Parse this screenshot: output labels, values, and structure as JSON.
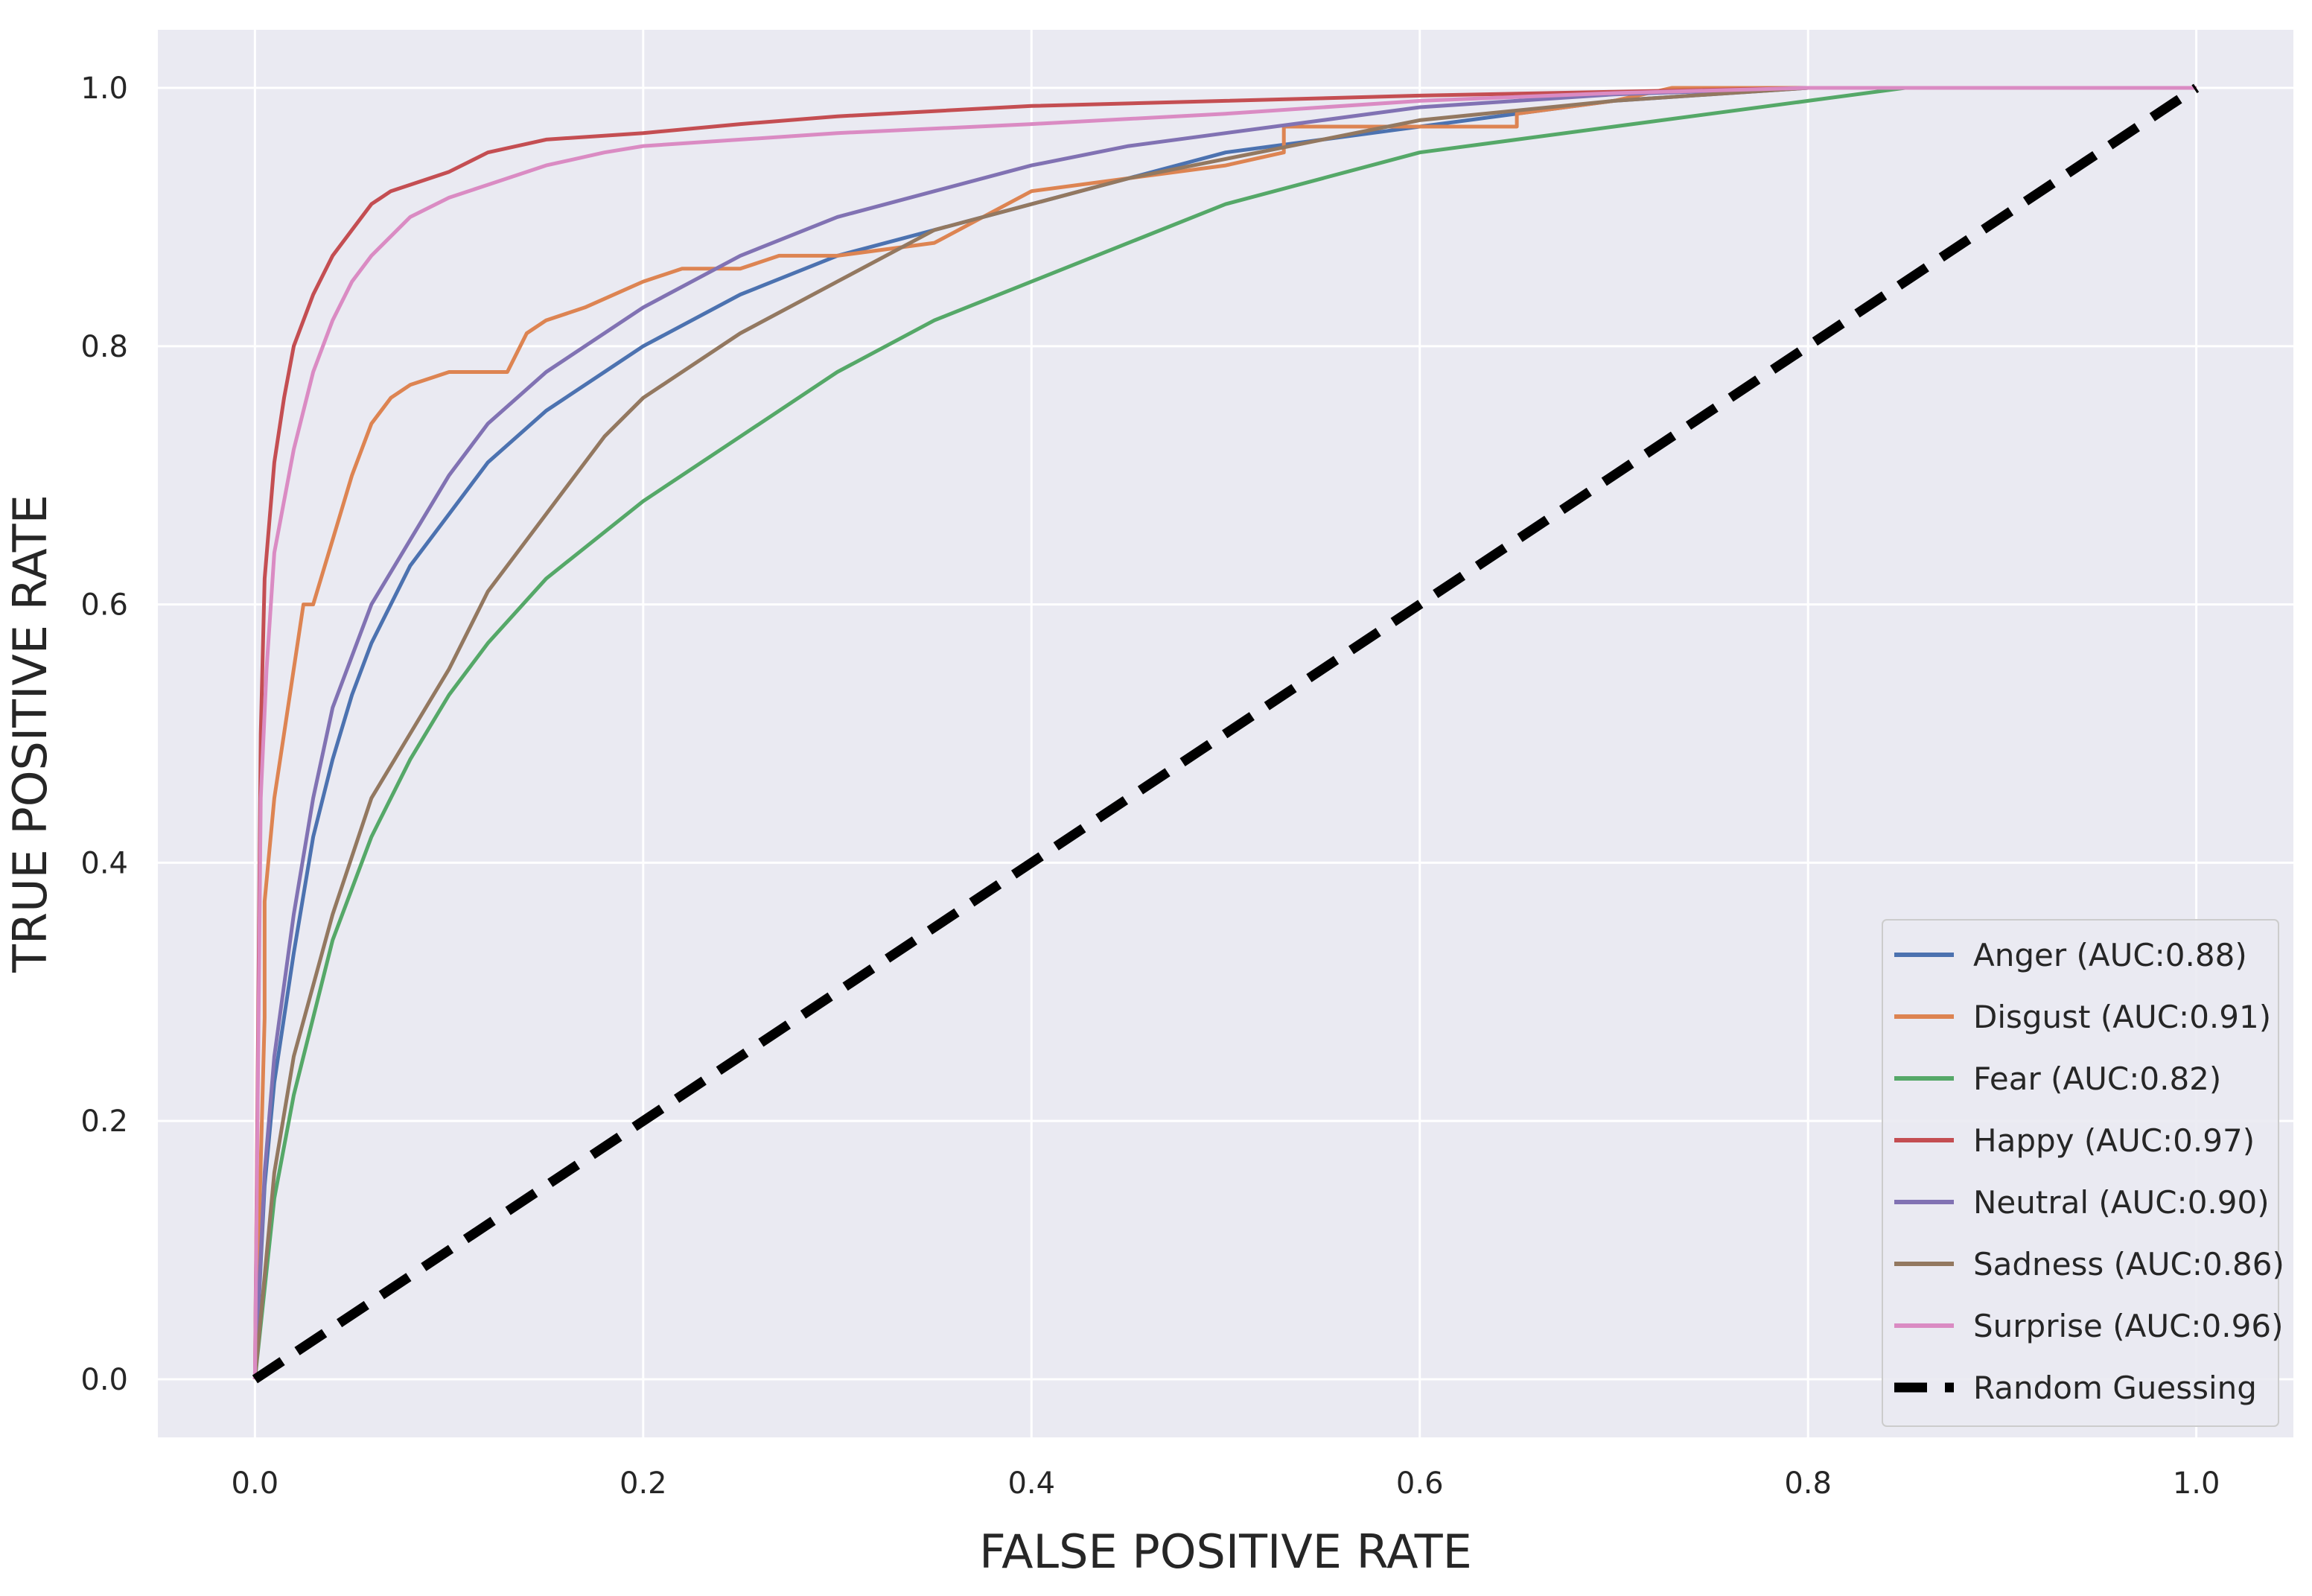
{
  "chart_data": {
    "type": "line",
    "title": "",
    "xlabel": "FALSE POSITIVE RATE",
    "ylabel": "TRUE POSITIVE RATE",
    "xlim": [
      -0.05,
      1.05
    ],
    "ylim": [
      -0.045,
      1.045
    ],
    "xticks": [
      0.0,
      0.2,
      0.4,
      0.6,
      0.8,
      1.0
    ],
    "xtick_labels": [
      "0.0",
      "0.2",
      "0.4",
      "0.6",
      "0.8",
      "1.0"
    ],
    "yticks": [
      0.0,
      0.2,
      0.4,
      0.6,
      0.8,
      1.0
    ],
    "ytick_labels": [
      "0.0",
      "0.2",
      "0.4",
      "0.6",
      "0.8",
      "1.0"
    ],
    "grid": true,
    "legend_position": "lower-right",
    "colors": {
      "plot_background": "#eaeaf2",
      "grid": "#ffffff"
    },
    "series": [
      {
        "name": "Anger (AUC:0.88)",
        "color": "#4c72b0",
        "dash": false,
        "x": [
          0.0,
          0.005,
          0.01,
          0.02,
          0.03,
          0.04,
          0.05,
          0.06,
          0.08,
          0.1,
          0.12,
          0.15,
          0.18,
          0.2,
          0.25,
          0.3,
          0.35,
          0.4,
          0.45,
          0.5,
          0.55,
          0.6,
          0.7,
          0.8,
          0.9,
          1.0
        ],
        "y": [
          0.0,
          0.15,
          0.23,
          0.33,
          0.42,
          0.48,
          0.53,
          0.57,
          0.63,
          0.67,
          0.71,
          0.75,
          0.78,
          0.8,
          0.84,
          0.87,
          0.89,
          0.91,
          0.93,
          0.95,
          0.96,
          0.97,
          0.99,
          1.0,
          1.0,
          1.0
        ]
      },
      {
        "name": "Disgust (AUC:0.91)",
        "color": "#dd8452",
        "dash": false,
        "x": [
          0.0,
          0.005,
          0.005,
          0.01,
          0.015,
          0.02,
          0.025,
          0.03,
          0.04,
          0.05,
          0.06,
          0.07,
          0.08,
          0.1,
          0.13,
          0.14,
          0.15,
          0.17,
          0.2,
          0.22,
          0.25,
          0.27,
          0.3,
          0.35,
          0.4,
          0.45,
          0.5,
          0.53,
          0.53,
          0.6,
          0.65,
          0.65,
          0.7,
          0.73,
          0.8,
          1.0
        ],
        "y": [
          0.0,
          0.28,
          0.37,
          0.45,
          0.5,
          0.55,
          0.6,
          0.6,
          0.65,
          0.7,
          0.74,
          0.76,
          0.77,
          0.78,
          0.78,
          0.81,
          0.82,
          0.83,
          0.85,
          0.86,
          0.86,
          0.87,
          0.87,
          0.88,
          0.92,
          0.93,
          0.94,
          0.95,
          0.97,
          0.97,
          0.97,
          0.98,
          0.99,
          1.0,
          1.0,
          1.0
        ]
      },
      {
        "name": "Fear (AUC:0.82)",
        "color": "#55a868",
        "dash": false,
        "x": [
          0.0,
          0.01,
          0.02,
          0.04,
          0.06,
          0.08,
          0.1,
          0.12,
          0.15,
          0.2,
          0.25,
          0.3,
          0.35,
          0.4,
          0.45,
          0.5,
          0.55,
          0.6,
          0.65,
          0.7,
          0.75,
          0.8,
          0.85,
          0.9,
          1.0
        ],
        "y": [
          0.0,
          0.14,
          0.22,
          0.34,
          0.42,
          0.48,
          0.53,
          0.57,
          0.62,
          0.68,
          0.73,
          0.78,
          0.82,
          0.85,
          0.88,
          0.91,
          0.93,
          0.95,
          0.96,
          0.97,
          0.98,
          0.99,
          1.0,
          1.0,
          1.0
        ]
      },
      {
        "name": "Happy (AUC:0.97)",
        "color": "#c44e52",
        "dash": false,
        "x": [
          0.0,
          0.003,
          0.005,
          0.01,
          0.015,
          0.02,
          0.03,
          0.04,
          0.05,
          0.06,
          0.07,
          0.08,
          0.1,
          0.12,
          0.15,
          0.2,
          0.25,
          0.3,
          0.35,
          0.4,
          0.5,
          0.6,
          0.7,
          0.8,
          1.0
        ],
        "y": [
          0.0,
          0.5,
          0.62,
          0.71,
          0.76,
          0.8,
          0.84,
          0.87,
          0.89,
          0.91,
          0.92,
          0.925,
          0.935,
          0.95,
          0.96,
          0.965,
          0.972,
          0.978,
          0.982,
          0.986,
          0.99,
          0.994,
          0.997,
          1.0,
          1.0
        ]
      },
      {
        "name": "Neutral (AUC:0.90)",
        "color": "#8172b3",
        "dash": false,
        "x": [
          0.0,
          0.005,
          0.01,
          0.02,
          0.03,
          0.04,
          0.05,
          0.06,
          0.08,
          0.1,
          0.12,
          0.15,
          0.2,
          0.25,
          0.3,
          0.35,
          0.4,
          0.45,
          0.5,
          0.55,
          0.6,
          0.7,
          0.8,
          1.0
        ],
        "y": [
          0.0,
          0.16,
          0.25,
          0.36,
          0.45,
          0.52,
          0.56,
          0.6,
          0.65,
          0.7,
          0.74,
          0.78,
          0.83,
          0.87,
          0.9,
          0.92,
          0.94,
          0.955,
          0.965,
          0.975,
          0.985,
          0.995,
          1.0,
          1.0
        ]
      },
      {
        "name": "Sadness (AUC:0.86)",
        "color": "#937860",
        "dash": false,
        "x": [
          0.0,
          0.01,
          0.02,
          0.04,
          0.06,
          0.08,
          0.1,
          0.12,
          0.15,
          0.18,
          0.2,
          0.25,
          0.3,
          0.35,
          0.4,
          0.45,
          0.5,
          0.55,
          0.6,
          0.7,
          0.8,
          1.0
        ],
        "y": [
          0.0,
          0.16,
          0.25,
          0.36,
          0.45,
          0.5,
          0.55,
          0.61,
          0.67,
          0.73,
          0.76,
          0.81,
          0.85,
          0.89,
          0.91,
          0.93,
          0.945,
          0.96,
          0.975,
          0.99,
          1.0,
          1.0
        ]
      },
      {
        "name": "Surprise (AUC:0.96)",
        "color": "#da8bc3",
        "dash": false,
        "x": [
          0.0,
          0.003,
          0.006,
          0.01,
          0.02,
          0.03,
          0.04,
          0.05,
          0.06,
          0.08,
          0.1,
          0.12,
          0.15,
          0.18,
          0.2,
          0.25,
          0.3,
          0.4,
          0.5,
          0.6,
          0.7,
          0.8,
          1.0
        ],
        "y": [
          0.0,
          0.45,
          0.55,
          0.64,
          0.72,
          0.78,
          0.82,
          0.85,
          0.87,
          0.9,
          0.915,
          0.925,
          0.94,
          0.95,
          0.955,
          0.96,
          0.965,
          0.972,
          0.98,
          0.99,
          0.996,
          1.0,
          1.0
        ]
      },
      {
        "name": "Random Guessing",
        "color": "#000000",
        "dash": true,
        "x": [
          0.0,
          1.0
        ],
        "y": [
          0.0,
          1.0
        ]
      }
    ]
  }
}
